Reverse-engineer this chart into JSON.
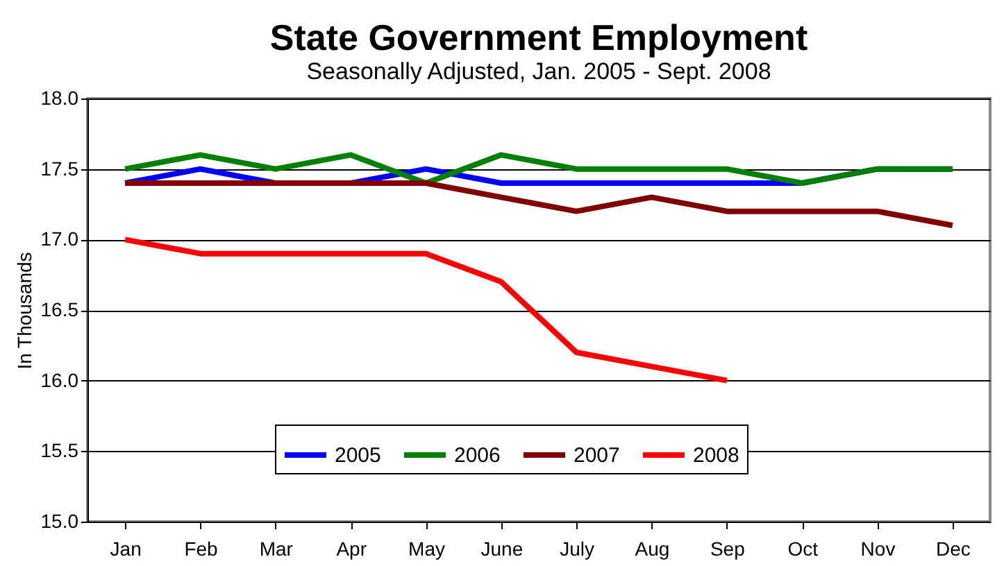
{
  "chart_data": {
    "type": "line",
    "title": "State Government Employment",
    "subtitle": "Seasonally Adjusted, Jan. 2005 - Sept. 2008",
    "ylabel": "In Thousands",
    "categories": [
      "Jan",
      "Feb",
      "Mar",
      "Apr",
      "May",
      "June",
      "July",
      "Aug",
      "Sep",
      "Oct",
      "Nov",
      "Dec"
    ],
    "series": [
      {
        "name": "2005",
        "color": "#0000ff",
        "values": [
          17.4,
          17.5,
          17.4,
          17.4,
          17.5,
          17.4,
          17.4,
          17.4,
          17.4,
          17.4,
          17.5,
          17.5
        ]
      },
      {
        "name": "2006",
        "color": "#008000",
        "values": [
          17.5,
          17.6,
          17.5,
          17.6,
          17.4,
          17.6,
          17.5,
          17.5,
          17.5,
          17.4,
          17.5,
          17.5
        ]
      },
      {
        "name": "2007",
        "color": "#800000",
        "values": [
          17.4,
          17.4,
          17.4,
          17.4,
          17.4,
          17.3,
          17.2,
          17.3,
          17.2,
          17.2,
          17.2,
          17.1
        ]
      },
      {
        "name": "2008",
        "color": "#ff0000",
        "values": [
          17.0,
          16.9,
          16.9,
          16.9,
          16.9,
          16.7,
          16.2,
          16.1,
          16.0,
          null,
          null,
          null
        ]
      }
    ],
    "ylim": [
      15.0,
      18.0
    ],
    "yticks": [
      {
        "value": 15.0,
        "label": "15.0"
      },
      {
        "value": 15.5,
        "label": "15.5"
      },
      {
        "value": 16.0,
        "label": "16.0"
      },
      {
        "value": 16.5,
        "label": "16.5"
      },
      {
        "value": 17.0,
        "label": "17.0"
      },
      {
        "value": 17.5,
        "label": "17.5"
      },
      {
        "value": 18.0,
        "label": "18.0"
      }
    ],
    "grid": "y",
    "legend": "bottom",
    "marker": "none",
    "line_style": "solid"
  }
}
